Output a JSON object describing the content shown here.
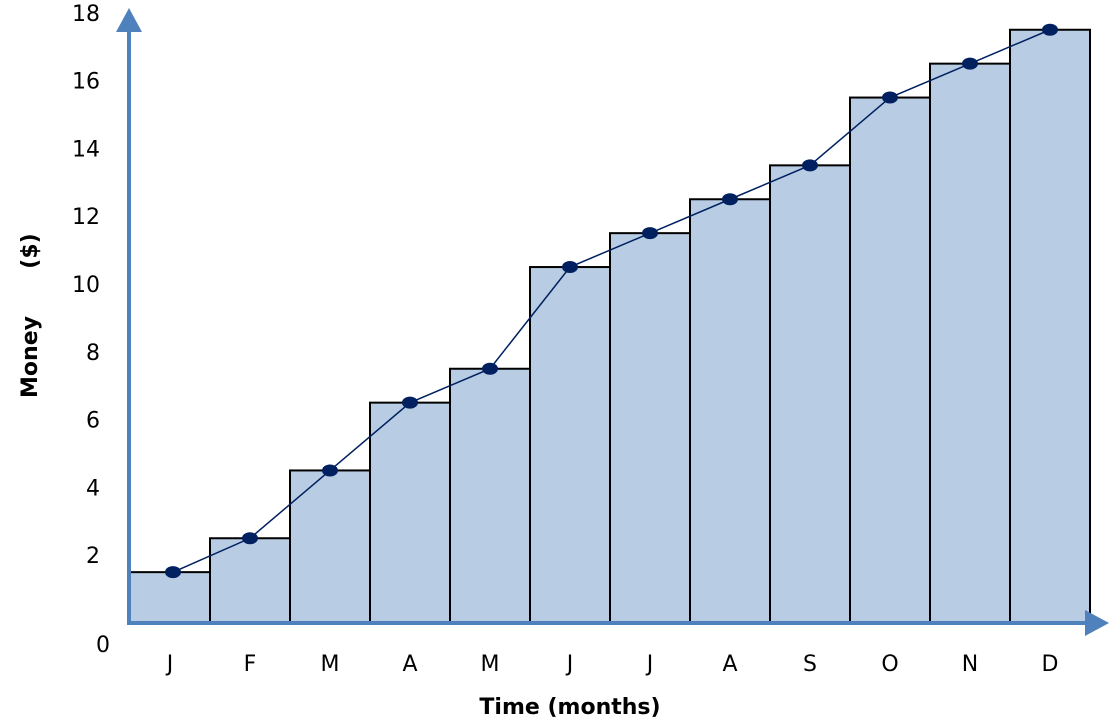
{
  "chart_data": {
    "type": "bar",
    "title": "",
    "xlabel": "Time (months)",
    "ylabel_left": "Money",
    "ylabel_right": "($)",
    "categories": [
      "J",
      "F",
      "M",
      "A",
      "M",
      "J",
      "J",
      "A",
      "S",
      "O",
      "N",
      "D"
    ],
    "series": [
      {
        "values": [
          1.5,
          2.5,
          4.5,
          6.5,
          7.5,
          10.5,
          11.5,
          12.5,
          13.5,
          15.5,
          16.5,
          17.5
        ]
      }
    ],
    "line_values": [
      1.5,
      2.5,
      4.5,
      6.5,
      7.5,
      10.5,
      11.5,
      12.5,
      13.5,
      15.5,
      16.5,
      17.5
    ],
    "yticks": [
      0,
      2,
      4,
      6,
      8,
      10,
      12,
      14,
      16,
      18
    ],
    "ylim": [
      0,
      18
    ],
    "grid": false,
    "legend": "none",
    "colors": {
      "bar_fill": "#b8cce4",
      "bar_stroke": "#000000",
      "line": "#002060",
      "marker": "#002060",
      "axis": "#4f81bd"
    }
  }
}
